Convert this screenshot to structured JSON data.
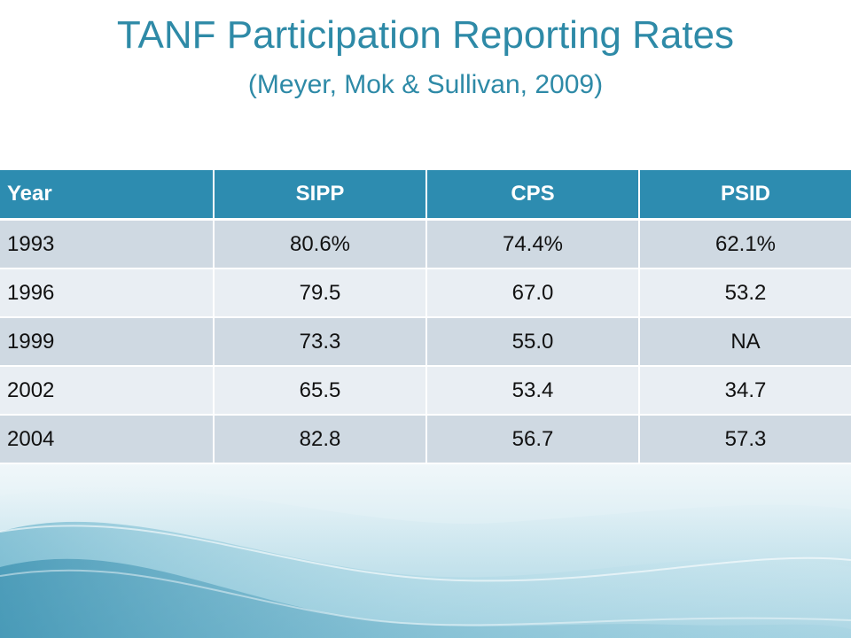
{
  "slide": {
    "title": "TANF Participation Reporting Rates",
    "subtitle": "(Meyer, Mok & Sullivan, 2009)"
  },
  "table": {
    "headers": [
      "Year",
      "SIPP",
      "CPS",
      "PSID"
    ],
    "rows": [
      [
        "1993",
        "80.6%",
        "74.4%",
        "62.1%"
      ],
      [
        "1996",
        "79.5",
        "67.0",
        "53.2"
      ],
      [
        "1999",
        "73.3",
        "55.0",
        "NA"
      ],
      [
        "2002",
        "65.5",
        "53.4",
        "34.7"
      ],
      [
        "2004",
        "82.8",
        "56.7",
        "57.3"
      ]
    ]
  },
  "colors": {
    "title": "#2e8aa7",
    "header_bg": "#2d8cb0",
    "row_odd": "#cfd9e2",
    "row_even": "#e9eef3"
  }
}
